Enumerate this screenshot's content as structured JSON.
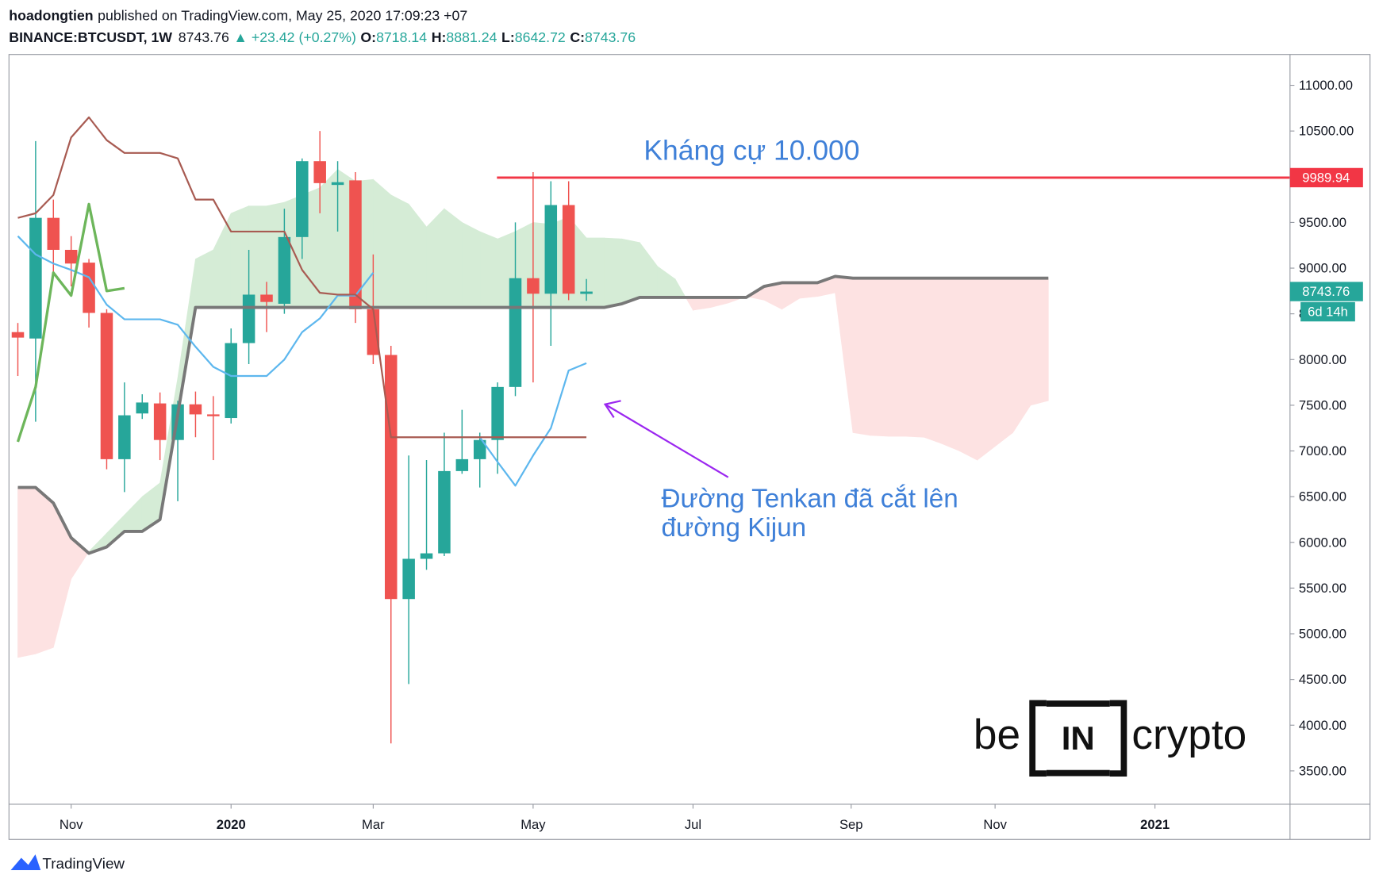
{
  "header": {
    "author": "hoadongtien",
    "published": "published on TradingView.com, May 25, 2020 17:09:23 +07",
    "symbol": "BINANCE:BTCUSDT, 1W",
    "change": "▲ +23.42 (+0.27%)",
    "ohlc_labels": [
      "O:",
      "H:",
      "L:",
      "C:"
    ]
  },
  "footer": {
    "brand": "TradingView"
  },
  "watermark": {
    "left": "be",
    "middle": "IN",
    "right": "crypto"
  },
  "chart_data": {
    "type": "candlestick",
    "categories": [
      null,
      null,
      null,
      null,
      null,
      null,
      null,
      null,
      null,
      null,
      null,
      null,
      null,
      null,
      null,
      null,
      null,
      null,
      null,
      null,
      null,
      null,
      null,
      null,
      null,
      null,
      null,
      null,
      null,
      null,
      null,
      null,
      null,
      null,
      null,
      null,
      null,
      null,
      null,
      null,
      null,
      null,
      null,
      null,
      null,
      null,
      null,
      null,
      null,
      null,
      null,
      null,
      null,
      null,
      null,
      null,
      null,
      null,
      null
    ],
    "open": [
      8300,
      8230,
      9550,
      9200,
      9060,
      8510,
      6910,
      7410,
      7520,
      7120,
      7510,
      7400,
      7360,
      8180,
      8710,
      8610,
      9340,
      10170,
      9910,
      9960,
      8550,
      8050,
      5380,
      5820,
      5880,
      6780,
      6910,
      7120,
      7700,
      8890,
      8720,
      9690,
      8718.14,
      null,
      null,
      null,
      null,
      null,
      null,
      null,
      null,
      null,
      null,
      null,
      null,
      null,
      null,
      null,
      null,
      null,
      null,
      null,
      null,
      null,
      null,
      null,
      null,
      null,
      null
    ],
    "high": [
      8400,
      10390,
      9750,
      9350,
      9100,
      8550,
      7750,
      7620,
      7640,
      7550,
      7650,
      7600,
      8340,
      9200,
      8850,
      9650,
      10200,
      10500,
      10170,
      10050,
      9150,
      8150,
      6950,
      6900,
      7200,
      7450,
      7200,
      7750,
      9500,
      10050,
      9950,
      9950,
      8881.24,
      null,
      null,
      null,
      null,
      null,
      null,
      null,
      null,
      null,
      null,
      null,
      null,
      null,
      null,
      null,
      null,
      null,
      null,
      null,
      null,
      null,
      null,
      null,
      null,
      null,
      null
    ],
    "low": [
      7820,
      7320,
      8900,
      8800,
      8350,
      6800,
      6550,
      7350,
      6900,
      6450,
      7150,
      6900,
      7300,
      7950,
      8300,
      8500,
      9100,
      9600,
      9400,
      8400,
      7950,
      3800,
      4450,
      5700,
      5850,
      6750,
      6600,
      6750,
      7600,
      7750,
      8150,
      8650,
      8642.72,
      null,
      null,
      null,
      null,
      null,
      null,
      null,
      null,
      null,
      null,
      null,
      null,
      null,
      null,
      null,
      null,
      null,
      null,
      null,
      null,
      null,
      null,
      null,
      null,
      null,
      null
    ],
    "close": [
      8240,
      9550,
      9200,
      9050,
      8510,
      6910,
      7390,
      7530,
      7120,
      7510,
      7400,
      7380,
      8180,
      8710,
      8630,
      9340,
      10170,
      9930,
      9940,
      8550,
      8050,
      5380,
      5820,
      5880,
      6780,
      6910,
      7120,
      7700,
      8890,
      8720,
      9690,
      8720,
      8743.76,
      null,
      null,
      null,
      null,
      null,
      null,
      null,
      null,
      null,
      null,
      null,
      null,
      null,
      null,
      null,
      null,
      null,
      null,
      null,
      null,
      null,
      null,
      null,
      null,
      null,
      null
    ],
    "up_color": "#26a69a",
    "down_color": "#ef5350",
    "series": [
      {
        "color": "#787878",
        "width": 3.5,
        "values": [
          6600,
          6600,
          6430,
          6050,
          5880,
          5950,
          6120,
          6120,
          6250,
          7400,
          8570,
          8570,
          8570,
          8570,
          8570,
          8570,
          8570,
          8570,
          8570,
          8570,
          8570,
          8570,
          8570,
          8570,
          8570,
          8570,
          8570,
          8570,
          8570,
          8570,
          8570,
          8570,
          8570,
          8570,
          8610,
          8680,
          8680,
          8680,
          8680,
          8680,
          8680,
          8680,
          8800,
          8840,
          8840,
          8840,
          8910,
          8890,
          8890,
          8890,
          8890,
          8890,
          8890,
          8890,
          8890,
          8890,
          8890,
          8890,
          8890
        ]
      },
      {
        "color": "#5db7ee",
        "width": 2,
        "values": [
          9350,
          9150,
          9050,
          8980,
          8900,
          8600,
          8440,
          8440,
          8440,
          8380,
          8140,
          7920,
          7820,
          7820,
          7820,
          8000,
          8300,
          8450,
          8700,
          8700,
          8950,
          null,
          null,
          null,
          null,
          null,
          7150,
          6880,
          6620,
          6950,
          7250,
          7880,
          7960,
          null,
          null,
          null,
          null,
          null,
          null,
          null,
          null,
          null,
          null,
          null,
          null,
          null,
          null,
          null,
          null,
          null,
          null,
          null,
          null,
          null,
          null,
          null,
          null,
          null,
          null
        ]
      },
      {
        "color": "#a85b52",
        "width": 2,
        "values": [
          9550,
          9600,
          9800,
          10430,
          10650,
          10400,
          10260,
          10260,
          10260,
          10200,
          9750,
          9750,
          9400,
          9400,
          9400,
          9400,
          8980,
          8730,
          8710,
          8710,
          8550,
          7150,
          7150,
          7150,
          7150,
          7150,
          7150,
          7150,
          7150,
          7150,
          7150,
          7150,
          7150,
          null,
          null,
          null,
          null,
          null,
          null,
          null,
          null,
          null,
          null,
          null,
          null,
          null,
          null,
          null,
          null,
          null,
          null,
          null,
          null,
          null,
          null,
          null,
          null,
          null,
          null
        ]
      },
      {
        "color": "#6db65b",
        "width": 3,
        "values": [
          7100,
          7700,
          8950,
          8700,
          9700,
          8750,
          8780,
          null,
          null,
          null,
          null,
          null,
          null,
          null,
          null,
          null,
          null,
          null,
          null,
          null,
          null,
          null,
          null,
          null,
          null,
          null,
          null,
          null,
          null,
          null,
          null,
          null,
          null,
          null,
          null,
          null,
          null,
          null,
          null,
          null,
          null,
          null,
          null,
          null,
          null,
          null,
          null,
          null,
          null,
          null,
          null,
          null,
          null,
          null,
          null,
          null,
          null,
          null,
          null
        ]
      }
    ],
    "cloud": {
      "span_a": [
        4740,
        4780,
        4850,
        5600,
        5900,
        6100,
        6300,
        6500,
        6650,
        7800,
        9100,
        9200,
        9600,
        9680,
        9680,
        9720,
        9800,
        9880,
        10080,
        9950,
        9970,
        9800,
        9700,
        9450,
        9650,
        9500,
        9400,
        9320,
        9400,
        9500,
        9480,
        9560,
        9330,
        9330,
        9320,
        9280,
        9020,
        8880,
        8540,
        8570,
        8620,
        8690,
        8650,
        8550,
        8670,
        8690,
        8730,
        7200,
        7170,
        7160,
        7160,
        7150,
        7080,
        7000,
        6900,
        7050,
        7200,
        7500,
        7550
      ],
      "span_b_series": 0,
      "up_color": "#d5ecd6",
      "down_color": "#fde2e2"
    },
    "hline": {
      "value": 9989.94,
      "color": "#f23645"
    },
    "countdown": "6d 14h",
    "xlim": [
      -0.5,
      71.6
    ],
    "xticks": [
      {
        "value": 3,
        "label": "Nov"
      },
      {
        "value": 12,
        "label": "2020"
      },
      {
        "value": 20,
        "label": "Mar"
      },
      {
        "value": 29,
        "label": "May"
      },
      {
        "value": 38,
        "label": "Jul"
      },
      {
        "value": 46.9,
        "label": "Sep"
      },
      {
        "value": 55,
        "label": "Nov"
      },
      {
        "value": 64,
        "label": "2021"
      }
    ],
    "ylim": [
      3135,
      11337
    ],
    "yticks": [
      {
        "value": 3500,
        "label": "3500.00"
      },
      {
        "value": 4000,
        "label": "4000.00"
      },
      {
        "value": 4500,
        "label": "4500.00"
      },
      {
        "value": 5000,
        "label": "5000.00"
      },
      {
        "value": 5500,
        "label": "5500.00"
      },
      {
        "value": 6000,
        "label": "6000.00"
      },
      {
        "value": 6500,
        "label": "6500.00"
      },
      {
        "value": 7000,
        "label": "7000.00"
      },
      {
        "value": 7500,
        "label": "7500.00"
      },
      {
        "value": 8000,
        "label": "8000.00"
      },
      {
        "value": 8500,
        "label": "8500.00"
      },
      {
        "value": 9000,
        "label": "9000.00"
      },
      {
        "value": 9500,
        "label": "9500.00"
      },
      {
        "value": 10000,
        "label": "10000.00"
      },
      {
        "value": 10500,
        "label": "10500.00"
      },
      {
        "value": 11000,
        "label": "11000.00"
      }
    ],
    "annotations": [
      {
        "text": "Kháng cự 10.000",
        "color": "#3f80d8"
      },
      {
        "text": "Đường Tenkan đã cắt lên",
        "color": "#3f80d8"
      },
      {
        "text": "đường Kijun",
        "color": "#3f80d8"
      }
    ]
  }
}
